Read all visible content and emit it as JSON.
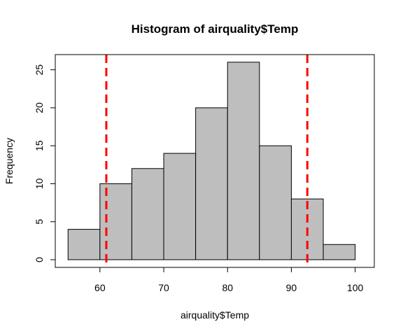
{
  "chart_data": {
    "type": "bar",
    "title": "Histogram of airquality$Temp",
    "xlabel": "airquality$Temp",
    "ylabel": "Frequency",
    "bins": [
      {
        "start": 55,
        "end": 60,
        "count": 4
      },
      {
        "start": 60,
        "end": 65,
        "count": 10
      },
      {
        "start": 65,
        "end": 70,
        "count": 12
      },
      {
        "start": 70,
        "end": 75,
        "count": 14
      },
      {
        "start": 75,
        "end": 80,
        "count": 20
      },
      {
        "start": 80,
        "end": 85,
        "count": 26
      },
      {
        "start": 85,
        "end": 90,
        "count": 15
      },
      {
        "start": 90,
        "end": 95,
        "count": 8
      },
      {
        "start": 95,
        "end": 100,
        "count": 2
      }
    ],
    "xlim": [
      53,
      103
    ],
    "ylim": [
      0,
      27
    ],
    "x_ticks": [
      "60",
      "70",
      "80",
      "90",
      "100"
    ],
    "y_ticks": [
      "0",
      "5",
      "10",
      "15",
      "20",
      "25"
    ],
    "reference_lines": [
      {
        "x": 61,
        "style": "dashed",
        "color": "#ff0000"
      },
      {
        "x": 92.5,
        "style": "dashed",
        "color": "#ff0000"
      }
    ],
    "bar_color": "#bebebe",
    "grid": false
  }
}
